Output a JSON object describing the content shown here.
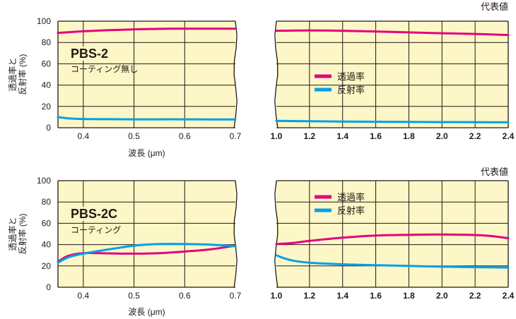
{
  "colors": {
    "background": "#fdf6c6",
    "grid": "#231815",
    "transmittance": "#e4007f",
    "reflectance": "#00a0e9"
  },
  "chart_data": [
    {
      "type": "line",
      "header": "代表値",
      "product": "PBS-2",
      "coating": "コーティング無し",
      "ylabel_lines": [
        "透過率と",
        "反射率 (%)"
      ],
      "xlabel": "波長 (μm)",
      "legend": {
        "position": "center",
        "labels": [
          "透過率",
          "反射率"
        ]
      },
      "ylim": [
        0,
        100
      ],
      "yticks": [
        "100",
        "80",
        "60",
        "40",
        "20",
        "0"
      ],
      "panels": [
        {
          "xlim": [
            0.35,
            0.7
          ],
          "xticks": [
            "0.4",
            "0.5",
            "0.6",
            "0.7"
          ],
          "series": [
            {
              "name": "透過率",
              "x": [
                0.35,
                0.4,
                0.45,
                0.5,
                0.55,
                0.6,
                0.65,
                0.7
              ],
              "y": [
                89,
                90.5,
                91.5,
                92.3,
                92.8,
                93,
                93,
                93
              ]
            },
            {
              "name": "反射率",
              "x": [
                0.35,
                0.37,
                0.4,
                0.45,
                0.5,
                0.55,
                0.6,
                0.65,
                0.7
              ],
              "y": [
                10,
                8.8,
                8.2,
                8.0,
                7.9,
                7.9,
                7.9,
                7.8,
                7.8
              ]
            }
          ]
        },
        {
          "xlim": [
            1.0,
            2.4
          ],
          "xticks": [
            "1.0",
            "1.2",
            "1.4",
            "1.6",
            "1.8",
            "2.0",
            "2.2",
            "2.4"
          ],
          "series": [
            {
              "name": "透過率",
              "x": [
                1.0,
                1.2,
                1.4,
                1.6,
                1.8,
                2.0,
                2.2,
                2.4
              ],
              "y": [
                91,
                91.3,
                91,
                90.3,
                89.5,
                88.7,
                88,
                87
              ]
            },
            {
              "name": "反射率",
              "x": [
                1.0,
                1.2,
                1.4,
                1.6,
                1.8,
                2.0,
                2.2,
                2.4
              ],
              "y": [
                6.5,
                6.1,
                5.8,
                5.6,
                5.4,
                5.3,
                5.2,
                5.1
              ]
            }
          ]
        }
      ]
    },
    {
      "type": "line",
      "header": "代表値",
      "product": "PBS-2C",
      "coating": "コーティング",
      "ylabel_lines": [
        "透過率と",
        "反射率 (%)"
      ],
      "xlabel": "波長 (μm)",
      "legend": {
        "position": "top-center",
        "labels": [
          "透過率",
          "反射率"
        ]
      },
      "ylim": [
        0,
        100
      ],
      "yticks": [
        "100",
        "80",
        "60",
        "40",
        "20",
        "0"
      ],
      "panels": [
        {
          "xlim": [
            0.35,
            0.7
          ],
          "xticks": [
            "0.4",
            "0.5",
            "0.6",
            "0.7"
          ],
          "series": [
            {
              "name": "透過率",
              "x": [
                0.35,
                0.37,
                0.4,
                0.45,
                0.5,
                0.55,
                0.6,
                0.65,
                0.7
              ],
              "y": [
                24,
                29.5,
                32,
                31.8,
                31.5,
                32,
                33.5,
                35.5,
                39
              ]
            },
            {
              "name": "反射率",
              "x": [
                0.35,
                0.37,
                0.4,
                0.45,
                0.5,
                0.55,
                0.6,
                0.65,
                0.7
              ],
              "y": [
                23,
                28,
                31.5,
                35.5,
                39,
                40.5,
                40.5,
                40,
                38.5
              ]
            }
          ]
        },
        {
          "xlim": [
            1.0,
            2.4
          ],
          "xticks": [
            "1.0",
            "1.2",
            "1.4",
            "1.6",
            "1.8",
            "2.0",
            "2.2",
            "2.4"
          ],
          "series": [
            {
              "name": "透過率",
              "x": [
                1.0,
                1.1,
                1.2,
                1.4,
                1.6,
                1.8,
                2.0,
                2.2,
                2.3,
                2.4
              ],
              "y": [
                40.5,
                41.5,
                43.5,
                46.5,
                48.5,
                49.2,
                49.5,
                49,
                48,
                46
              ]
            },
            {
              "name": "反射率",
              "x": [
                1.0,
                1.05,
                1.1,
                1.2,
                1.4,
                1.6,
                1.8,
                2.0,
                2.2,
                2.4
              ],
              "y": [
                30,
                27,
                25,
                23,
                21.5,
                20.7,
                20,
                19.3,
                18.8,
                18.5
              ]
            }
          ]
        }
      ]
    }
  ]
}
